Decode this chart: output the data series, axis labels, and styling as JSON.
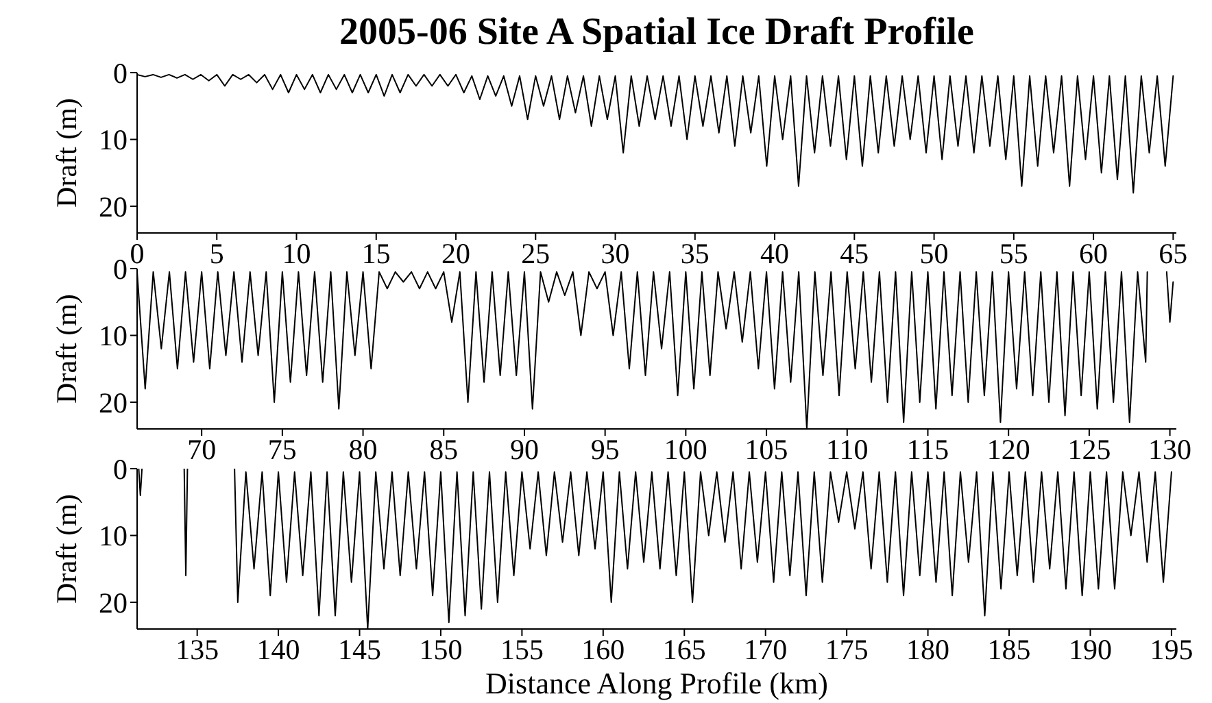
{
  "chart_data": [
    {
      "type": "line",
      "title": "2005-06 Site A Spatial Ice Draft Profile",
      "ylabel": "Draft (m)",
      "color": "#000000",
      "x": [
        0,
        0.5,
        1,
        1.5,
        2,
        2.5,
        3,
        3.5,
        4,
        4.5,
        5,
        5.5,
        6,
        6.5,
        7,
        7.5,
        8,
        8.5,
        9,
        9.5,
        10,
        10.5,
        11,
        11.5,
        12,
        12.5,
        13,
        13.5,
        14,
        14.5,
        15,
        15.5,
        16,
        16.5,
        17,
        17.5,
        18,
        18.5,
        19,
        19.5,
        20,
        20.5,
        21,
        21.5,
        22,
        22.5,
        23,
        23.5,
        24,
        24.5,
        25,
        25.5,
        26,
        26.5,
        27,
        27.5,
        28,
        28.5,
        29,
        29.5,
        30,
        30.5,
        31,
        31.5,
        32,
        32.5,
        33,
        33.5,
        34,
        34.5,
        35,
        35.5,
        36,
        36.5,
        37,
        37.5,
        38,
        38.5,
        39,
        39.5,
        40,
        40.5,
        41,
        41.5,
        42,
        42.5,
        43,
        43.5,
        44,
        44.5,
        45,
        45.5,
        46,
        46.5,
        47,
        47.5,
        48,
        48.5,
        49,
        49.5,
        50,
        50.5,
        51,
        51.5,
        52,
        52.5,
        53,
        53.5,
        54,
        54.5,
        55,
        55.5,
        56,
        56.5,
        57,
        57.5,
        58,
        58.5,
        59,
        59.5,
        60,
        60.5,
        61,
        61.5,
        62,
        62.5,
        63,
        63.5,
        64,
        64.5,
        65
      ],
      "values": [
        0.3,
        0.6,
        0.3,
        0.7,
        0.3,
        0.8,
        0.3,
        1,
        0.3,
        1.2,
        0.3,
        2,
        0.3,
        1,
        0.3,
        1.5,
        0.3,
        2.5,
        0.3,
        3,
        0.3,
        2.5,
        0.3,
        3,
        0.3,
        2.5,
        0.3,
        3,
        0.3,
        3,
        0.3,
        3.5,
        0.3,
        3,
        0.3,
        2,
        0.3,
        2,
        0.3,
        2,
        0.3,
        3,
        0.5,
        4,
        0.5,
        3.5,
        0.5,
        5,
        0.5,
        7,
        0.5,
        5,
        0.5,
        7,
        0.5,
        6,
        0.5,
        8,
        0.5,
        7,
        0.5,
        12,
        0.5,
        8,
        0.5,
        7,
        0.5,
        8,
        0.5,
        10,
        0.5,
        8,
        0.5,
        9,
        0.5,
        11,
        0.5,
        9,
        0.5,
        14,
        0.5,
        10,
        0.5,
        17,
        0.5,
        12,
        0.5,
        11,
        0.5,
        13,
        0.5,
        14,
        0.5,
        12,
        0.5,
        11,
        0.5,
        10,
        0.5,
        12,
        0.5,
        13,
        0.5,
        11,
        0.5,
        12,
        0.5,
        11,
        0.5,
        13,
        0.5,
        17,
        0.5,
        14,
        0.5,
        12,
        0.5,
        17,
        0.5,
        13,
        0.5,
        15,
        0.5,
        16,
        0.5,
        18,
        0.5,
        12,
        0.5,
        14,
        0.5
      ],
      "xlim": [
        0,
        65.2
      ],
      "xticks": [
        0,
        5,
        10,
        15,
        20,
        25,
        30,
        35,
        40,
        45,
        50,
        55,
        60,
        65
      ],
      "ylim": [
        24,
        0
      ],
      "yticks": [
        0,
        10,
        20
      ]
    },
    {
      "type": "line",
      "ylabel": "Draft (m)",
      "color": "#000000",
      "x": [
        66,
        66.5,
        67,
        67.5,
        68,
        68.5,
        69,
        69.5,
        70,
        70.5,
        71,
        71.5,
        72,
        72.5,
        73,
        73.5,
        74,
        74.5,
        75,
        75.5,
        76,
        76.5,
        77,
        77.5,
        78,
        78.5,
        79,
        79.5,
        80,
        80.5,
        81,
        81.5,
        82,
        82.5,
        83,
        83.5,
        84,
        84.5,
        85,
        85.5,
        86,
        86.5,
        87,
        87.5,
        88,
        88.5,
        89,
        89.5,
        90,
        90.5,
        91,
        91.5,
        92,
        92.5,
        93,
        93.5,
        94,
        94.5,
        95,
        95.5,
        96,
        96.5,
        97,
        97.5,
        98,
        98.5,
        99,
        99.5,
        100,
        100.5,
        101,
        101.5,
        102,
        102.5,
        103,
        103.5,
        104,
        104.5,
        105,
        105.5,
        106,
        106.5,
        107,
        107.5,
        108,
        108.5,
        109,
        109.5,
        110,
        110.5,
        111,
        111.5,
        112,
        112.5,
        113,
        113.5,
        114,
        114.5,
        115,
        115.5,
        116,
        116.5,
        117,
        117.5,
        118,
        118.5,
        119,
        119.5,
        120,
        120.5,
        121,
        121.5,
        122,
        122.5,
        123,
        123.5,
        124,
        124.5,
        125,
        125.5,
        126,
        126.5,
        127,
        127.5,
        128,
        128.5,
        128.6,
        129,
        129.8,
        130,
        130.2
      ],
      "values": [
        0.5,
        18,
        0.5,
        12,
        0.5,
        15,
        0.5,
        14,
        0.5,
        15,
        0.5,
        13,
        0.5,
        14,
        0.5,
        13,
        0.5,
        20,
        0.5,
        17,
        0.5,
        16,
        0.5,
        17,
        0.5,
        21,
        0.5,
        13,
        0.5,
        15,
        0.5,
        3,
        0.5,
        2,
        0.5,
        3,
        0.5,
        3,
        0.5,
        8,
        0.5,
        20,
        0.5,
        17,
        0.5,
        16,
        0.5,
        16,
        0.5,
        21,
        0.5,
        5,
        0.5,
        4,
        0.5,
        10,
        0.5,
        3,
        0.5,
        10,
        0.5,
        15,
        0.5,
        16,
        0.5,
        12,
        0.5,
        19,
        0.5,
        18,
        0.5,
        16,
        0.5,
        9,
        0.5,
        11,
        0.5,
        15,
        0.5,
        18,
        0.5,
        17,
        0.5,
        24,
        0.5,
        16,
        0.5,
        19,
        0.5,
        15,
        0.5,
        17,
        0.5,
        20,
        0.5,
        23,
        0.5,
        20,
        0.5,
        21,
        0.5,
        19,
        0.5,
        20,
        0.5,
        19,
        0.5,
        23,
        0.5,
        18,
        0.5,
        19,
        0.5,
        20,
        0.5,
        22,
        0.5,
        19,
        0.5,
        21,
        0.5,
        20,
        0.5,
        23,
        0.5,
        14,
        0.5,
        null,
        0.5,
        8,
        2
      ],
      "xlim": [
        66,
        130.4
      ],
      "xticks": [
        70,
        75,
        80,
        85,
        90,
        95,
        100,
        105,
        110,
        115,
        120,
        125,
        130
      ],
      "ylim": [
        24,
        0
      ],
      "yticks": [
        0,
        10,
        20
      ]
    },
    {
      "type": "line",
      "ylabel": "Draft (m)",
      "xlabel": "Distance Along Profile (km)",
      "color": "#000000",
      "x": [
        131.4,
        131.5,
        131.6,
        132,
        134.2,
        134.3,
        134.4,
        135,
        137.3,
        137.5,
        138,
        138.5,
        139,
        139.5,
        140,
        140.5,
        141,
        141.5,
        142,
        142.5,
        143,
        143.5,
        144,
        144.5,
        145,
        145.5,
        146,
        146.5,
        147,
        147.5,
        148,
        148.5,
        149,
        149.5,
        150,
        150.5,
        151,
        151.5,
        152,
        152.5,
        153,
        153.5,
        154,
        154.5,
        155,
        155.5,
        156,
        156.5,
        157,
        157.5,
        158,
        158.5,
        159,
        159.5,
        160,
        160.5,
        161,
        161.5,
        162,
        162.5,
        163,
        163.5,
        164,
        164.5,
        165,
        165.5,
        166,
        166.5,
        167,
        167.5,
        168,
        168.5,
        169,
        169.5,
        170,
        170.5,
        171,
        171.5,
        172,
        172.5,
        173,
        173.5,
        174,
        174.5,
        175,
        175.5,
        176,
        176.5,
        177,
        177.5,
        178,
        178.5,
        179,
        179.5,
        180,
        180.5,
        181,
        181.5,
        182,
        182.5,
        183,
        183.5,
        184,
        184.5,
        185,
        185.5,
        186,
        186.5,
        187,
        187.5,
        188,
        188.5,
        189,
        189.5,
        190,
        190.5,
        191,
        191.5,
        192,
        192.5,
        193,
        193.5,
        194,
        194.5,
        195
      ],
      "values": [
        0,
        4,
        0,
        null,
        0,
        16,
        0,
        null,
        0,
        20,
        0.5,
        15,
        0.5,
        19,
        0.5,
        17,
        0.5,
        16,
        0.5,
        22,
        0.5,
        22,
        0.5,
        17,
        0.5,
        24,
        0.5,
        15,
        0.5,
        16,
        0.5,
        15,
        0.5,
        19,
        0.5,
        23,
        0.5,
        22,
        0.5,
        21,
        0.5,
        20,
        0.5,
        16,
        0.5,
        12,
        0.5,
        13,
        0.5,
        11,
        0.5,
        13,
        0.5,
        12,
        0.5,
        20,
        0.5,
        15,
        0.5,
        14,
        0.5,
        15,
        0.5,
        16,
        0.5,
        20,
        0.5,
        10,
        0.5,
        11,
        0.5,
        15,
        0.5,
        14,
        0.5,
        17,
        0.5,
        16,
        0.5,
        19,
        0.5,
        17,
        0.5,
        8,
        0.5,
        9,
        0.5,
        15,
        0.5,
        17,
        0.5,
        19,
        0.5,
        16,
        0.5,
        17,
        0.5,
        19,
        0.5,
        14,
        0.5,
        22,
        0.5,
        18,
        0.5,
        16,
        0.5,
        17,
        0.5,
        15,
        0.5,
        18,
        0.5,
        19,
        0.5,
        18,
        0.5,
        18,
        0.5,
        10,
        0.5,
        14,
        0.5,
        17,
        0.5
      ],
      "xlim": [
        131.3,
        195.3
      ],
      "xticks": [
        135,
        140,
        145,
        150,
        155,
        160,
        165,
        170,
        175,
        180,
        185,
        190,
        195
      ],
      "ylim": [
        24,
        0
      ],
      "yticks": [
        0,
        10,
        20
      ]
    }
  ]
}
